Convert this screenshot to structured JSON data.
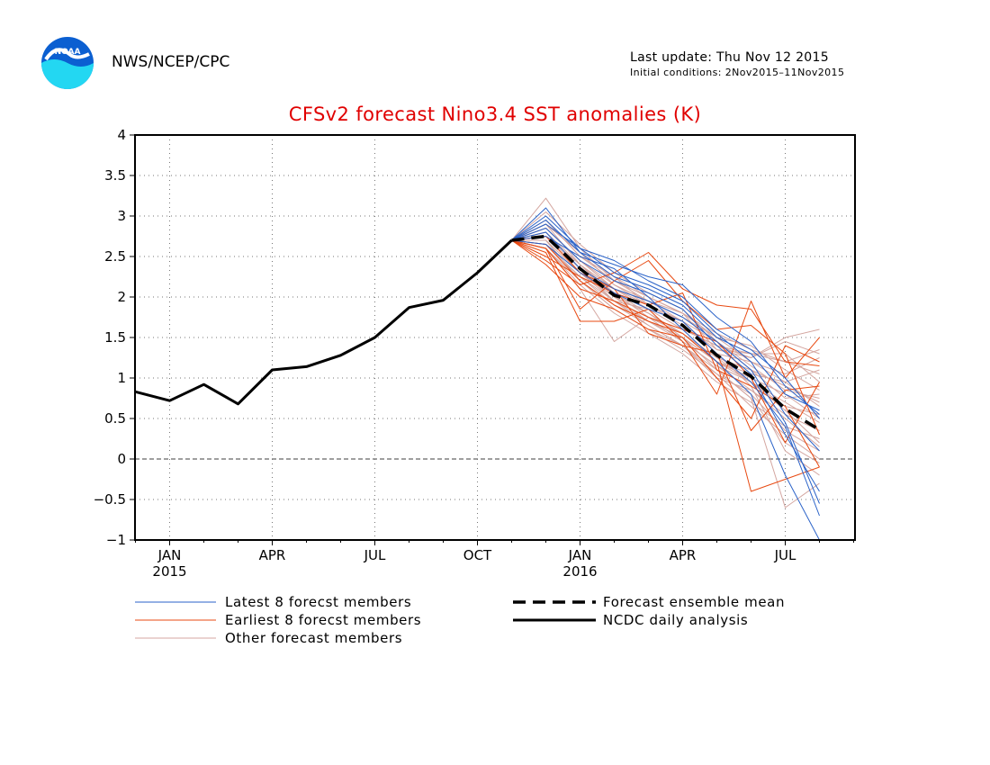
{
  "header": {
    "org": "NWS/NCEP/CPC",
    "last_update": "Last update: Thu Nov 12 2015",
    "initial_conditions": "Initial conditions: 2Nov2015–11Nov2015",
    "logo_text": "NOAA"
  },
  "colors": {
    "title": "#e00000",
    "latest": "#2a62c8",
    "earliest": "#e84a12",
    "other": "#d4a6a0",
    "mean": "#000000",
    "analysis": "#000000"
  },
  "chart_data": {
    "type": "line",
    "title": "CFSv2 forecast Nino3.4 SST anomalies (K)",
    "xlabel": "",
    "ylabel": "",
    "ylim": [
      -1,
      4
    ],
    "y_ticks": [
      "4",
      "3.5",
      "3",
      "2.5",
      "2",
      "1.5",
      "1",
      "0.5",
      "0",
      "−0.5",
      "−1"
    ],
    "x_ticks": [
      {
        "label": "JAN",
        "year": "2015"
      },
      {
        "label": "APR",
        "year": ""
      },
      {
        "label": "JUL",
        "year": ""
      },
      {
        "label": "OCT",
        "year": ""
      },
      {
        "label": "JAN",
        "year": "2016"
      },
      {
        "label": "APR",
        "year": ""
      },
      {
        "label": "JUL",
        "year": ""
      }
    ],
    "grid": true,
    "legend": [
      {
        "label": "Latest 8 forecst members",
        "style": "latest"
      },
      {
        "label": "Earliest 8 forecst members",
        "style": "earliest"
      },
      {
        "label": "Other forecast members",
        "style": "other"
      },
      {
        "label": "Forecast ensemble mean",
        "style": "mean"
      },
      {
        "label": "NCDC daily analysis",
        "style": "analysis"
      }
    ],
    "series": [
      {
        "name": "NCDC daily analysis",
        "x": [
          "Dec 2014",
          "Jan 2015",
          "Feb 2015",
          "Mar 2015",
          "Apr 2015",
          "May 2015",
          "Jun 2015",
          "Jul 2015",
          "Aug 2015",
          "Sep 2015",
          "Oct 2015",
          "Nov 2015"
        ],
        "values": [
          0.83,
          0.72,
          0.92,
          0.68,
          1.1,
          1.14,
          1.28,
          1.5,
          1.87,
          1.96,
          2.3,
          2.7
        ]
      },
      {
        "name": "Forecast ensemble mean",
        "x": [
          "Nov 2015",
          "Dec 2015",
          "Jan 2016",
          "Feb 2016",
          "Mar 2016",
          "Apr 2016",
          "May 2016",
          "Jun 2016",
          "Jul 2016",
          "Aug 2016"
        ],
        "values": [
          2.7,
          2.75,
          2.35,
          2.02,
          1.9,
          1.65,
          1.28,
          1.02,
          0.62,
          0.36
        ]
      },
      {
        "name": "Latest 8 forecst members",
        "x": [
          "Nov 2015",
          "Dec 2015",
          "Jan 2016",
          "Feb 2016",
          "Mar 2016",
          "Apr 2016",
          "May 2016",
          "Jun 2016",
          "Jul 2016",
          "Aug 2016"
        ],
        "members": [
          [
            2.7,
            3.1,
            2.55,
            2.4,
            2.25,
            2.15,
            1.75,
            1.45,
            0.9,
            0.55
          ],
          [
            2.7,
            2.9,
            2.6,
            2.3,
            2.15,
            1.95,
            1.55,
            1.2,
            0.55,
            0.1
          ],
          [
            2.7,
            2.85,
            2.45,
            2.2,
            2.05,
            1.85,
            1.4,
            1.05,
            0.3,
            -0.4
          ],
          [
            2.7,
            2.8,
            2.35,
            2.1,
            1.95,
            1.75,
            1.45,
            1.1,
            0.45,
            -0.55
          ],
          [
            2.7,
            2.75,
            2.5,
            2.35,
            2.0,
            1.6,
            1.2,
            0.8,
            -0.2,
            -1.0
          ],
          [
            2.7,
            2.95,
            2.55,
            2.25,
            2.1,
            1.9,
            1.5,
            1.3,
            0.8,
            0.6
          ],
          [
            2.7,
            2.65,
            2.3,
            2.05,
            1.85,
            1.7,
            1.3,
            0.95,
            0.4,
            -0.7
          ],
          [
            2.7,
            3.0,
            2.6,
            2.45,
            2.2,
            2.0,
            1.6,
            1.35,
            1.0,
            0.5
          ]
        ]
      },
      {
        "name": "Earliest 8 forecst members",
        "x": [
          "Nov 2015",
          "Dec 2015",
          "Jan 2016",
          "Feb 2016",
          "Mar 2016",
          "Apr 2016",
          "May 2016",
          "Jun 2016",
          "Jul 2016",
          "Aug 2016"
        ],
        "members": [
          [
            2.7,
            2.55,
            1.7,
            1.7,
            1.85,
            1.45,
            0.8,
            1.95,
            1.0,
            1.5
          ],
          [
            2.7,
            2.45,
            2.15,
            2.3,
            2.55,
            2.1,
            1.9,
            1.85,
            1.2,
            1.15
          ],
          [
            2.7,
            2.65,
            2.2,
            1.9,
            1.7,
            1.55,
            1.2,
            -0.4,
            -0.25,
            -0.1
          ],
          [
            2.7,
            2.4,
            2.0,
            1.85,
            1.6,
            1.5,
            1.0,
            0.5,
            1.4,
            1.2
          ],
          [
            2.7,
            2.75,
            2.3,
            2.1,
            1.55,
            1.4,
            1.3,
            0.35,
            0.85,
            0.9
          ],
          [
            2.7,
            2.6,
            1.85,
            2.2,
            2.45,
            1.95,
            1.6,
            1.65,
            1.3,
            0.3
          ],
          [
            2.7,
            2.5,
            2.25,
            2.05,
            1.9,
            2.05,
            1.1,
            0.9,
            0.65,
            -0.1
          ],
          [
            2.7,
            2.6,
            2.1,
            1.95,
            1.75,
            1.6,
            1.45,
            1.0,
            0.2,
            0.95
          ]
        ]
      },
      {
        "name": "Other forecast members",
        "x": [
          "Nov 2015",
          "Dec 2015",
          "Jan 2016",
          "Feb 2016",
          "Mar 2016",
          "Apr 2016",
          "May 2016",
          "Jun 2016",
          "Jul 2016",
          "Aug 2016"
        ],
        "members": [
          [
            2.7,
            3.22,
            2.6,
            2.2,
            2.0,
            1.8,
            1.35,
            1.3,
            1.2,
            1.35
          ],
          [
            2.7,
            2.9,
            2.4,
            2.05,
            1.8,
            1.55,
            1.25,
            1.1,
            0.9,
            0.7
          ],
          [
            2.7,
            2.8,
            2.35,
            1.95,
            1.85,
            1.6,
            1.4,
            1.25,
            1.5,
            1.6
          ],
          [
            2.7,
            2.7,
            2.2,
            1.9,
            1.7,
            1.5,
            1.2,
            1.0,
            0.8,
            0.5
          ],
          [
            2.7,
            2.85,
            2.45,
            2.1,
            1.95,
            1.75,
            1.5,
            1.4,
            1.1,
            0.85
          ],
          [
            2.7,
            2.6,
            2.1,
            1.45,
            1.75,
            1.45,
            1.15,
            0.95,
            0.6,
            0.2
          ],
          [
            2.7,
            2.95,
            2.5,
            2.25,
            1.9,
            1.7,
            1.3,
            1.2,
            1.05,
            1.25
          ],
          [
            2.7,
            2.75,
            2.3,
            2.0,
            1.8,
            1.5,
            1.1,
            0.75,
            -0.6,
            -0.3
          ],
          [
            2.7,
            2.65,
            2.25,
            1.95,
            1.65,
            1.4,
            1.0,
            0.85,
            0.5,
            0.15
          ],
          [
            2.7,
            2.9,
            2.55,
            2.15,
            1.95,
            1.8,
            1.55,
            1.35,
            1.2,
            1.05
          ],
          [
            2.7,
            2.8,
            2.35,
            2.05,
            1.75,
            1.55,
            1.25,
            0.95,
            0.7,
            0.45
          ],
          [
            2.7,
            2.7,
            2.2,
            1.85,
            1.6,
            1.35,
            1.05,
            0.65,
            0.3,
            0.0
          ],
          [
            2.7,
            3.05,
            2.65,
            2.3,
            2.05,
            1.85,
            1.45,
            1.15,
            0.85,
            0.75
          ],
          [
            2.7,
            2.75,
            2.4,
            2.0,
            1.7,
            1.5,
            1.2,
            1.05,
            0.95,
            1.1
          ],
          [
            2.7,
            2.6,
            2.15,
            1.8,
            1.55,
            1.3,
            0.95,
            0.7,
            0.4,
            0.25
          ],
          [
            2.7,
            2.85,
            2.45,
            2.15,
            1.9,
            1.65,
            1.35,
            1.25,
            1.45,
            1.3
          ],
          [
            2.7,
            2.95,
            2.5,
            2.2,
            1.95,
            1.7,
            1.3,
            0.9,
            0.1,
            -0.2
          ],
          [
            2.7,
            2.7,
            2.3,
            1.95,
            1.7,
            1.45,
            1.15,
            0.85,
            0.55,
            0.35
          ],
          [
            2.7,
            2.8,
            2.4,
            2.1,
            1.85,
            1.6,
            1.4,
            1.3,
            1.3,
            0.95
          ],
          [
            2.7,
            2.65,
            2.25,
            1.9,
            1.65,
            1.4,
            1.1,
            0.75,
            0.2,
            -0.05
          ],
          [
            2.7,
            2.9,
            2.55,
            2.25,
            2.0,
            1.8,
            1.5,
            1.2,
            0.95,
            0.65
          ],
          [
            2.7,
            2.75,
            2.35,
            2.05,
            1.8,
            1.55,
            1.2,
            0.95,
            0.65,
            0.55
          ],
          [
            2.7,
            2.6,
            2.2,
            1.85,
            1.6,
            1.4,
            1.05,
            0.8,
            0.35,
            0.1
          ],
          [
            2.7,
            2.85,
            2.45,
            2.1,
            1.9,
            1.7,
            1.45,
            1.1,
            0.75,
            0.8
          ]
        ]
      }
    ]
  }
}
